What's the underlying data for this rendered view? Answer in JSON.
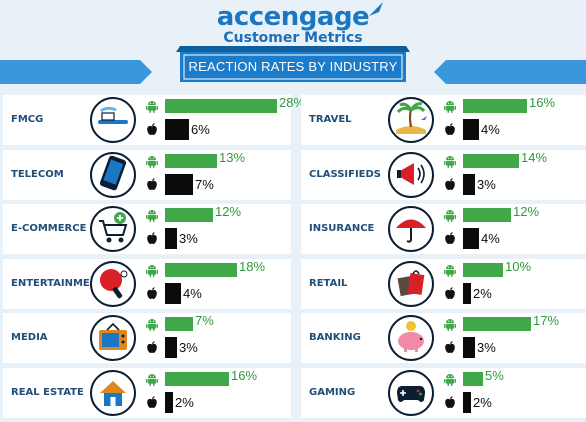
{
  "brand": {
    "logo": "accengage",
    "subtitle": "Customer Metrics"
  },
  "banner": "REACTION RATES BY INDUSTRY",
  "colors": {
    "android": "#41a84a",
    "apple": "#0b0b0b",
    "icon": "#1b77c4",
    "label": "#1f4e79",
    "background": "#e9f1f8"
  },
  "platform_icons": {
    "android": "android-robot-icon",
    "apple": "apple-logo-icon"
  },
  "chart_data": {
    "type": "bar",
    "title": "REACTION RATES BY INDUSTRY",
    "unit": "%",
    "categories": [
      "FMCG",
      "TELECOM",
      "E-COMMERCE",
      "ENTERTAINMENT",
      "MEDIA",
      "REAL ESTATE",
      "TRAVEL",
      "CLASSIFIEDS",
      "INSURANCE",
      "RETAIL",
      "BANKING",
      "GAMING"
    ],
    "series": [
      {
        "platform": "android",
        "values": [
          28,
          13,
          12,
          18,
          7,
          16,
          16,
          14,
          12,
          10,
          17,
          5
        ]
      },
      {
        "platform": "apple",
        "values": [
          6,
          7,
          3,
          4,
          3,
          2,
          4,
          3,
          4,
          2,
          3,
          2
        ]
      }
    ],
    "category_icons": [
      "toothbrush-icon",
      "smartphone-icon",
      "shopping-cart-icon",
      "ping-pong-icon",
      "television-icon",
      "house-icon",
      "palm-island-icon",
      "megaphone-icon",
      "umbrella-icon",
      "shopping-bags-icon",
      "piggy-bank-icon",
      "gamepad-icon"
    ]
  }
}
